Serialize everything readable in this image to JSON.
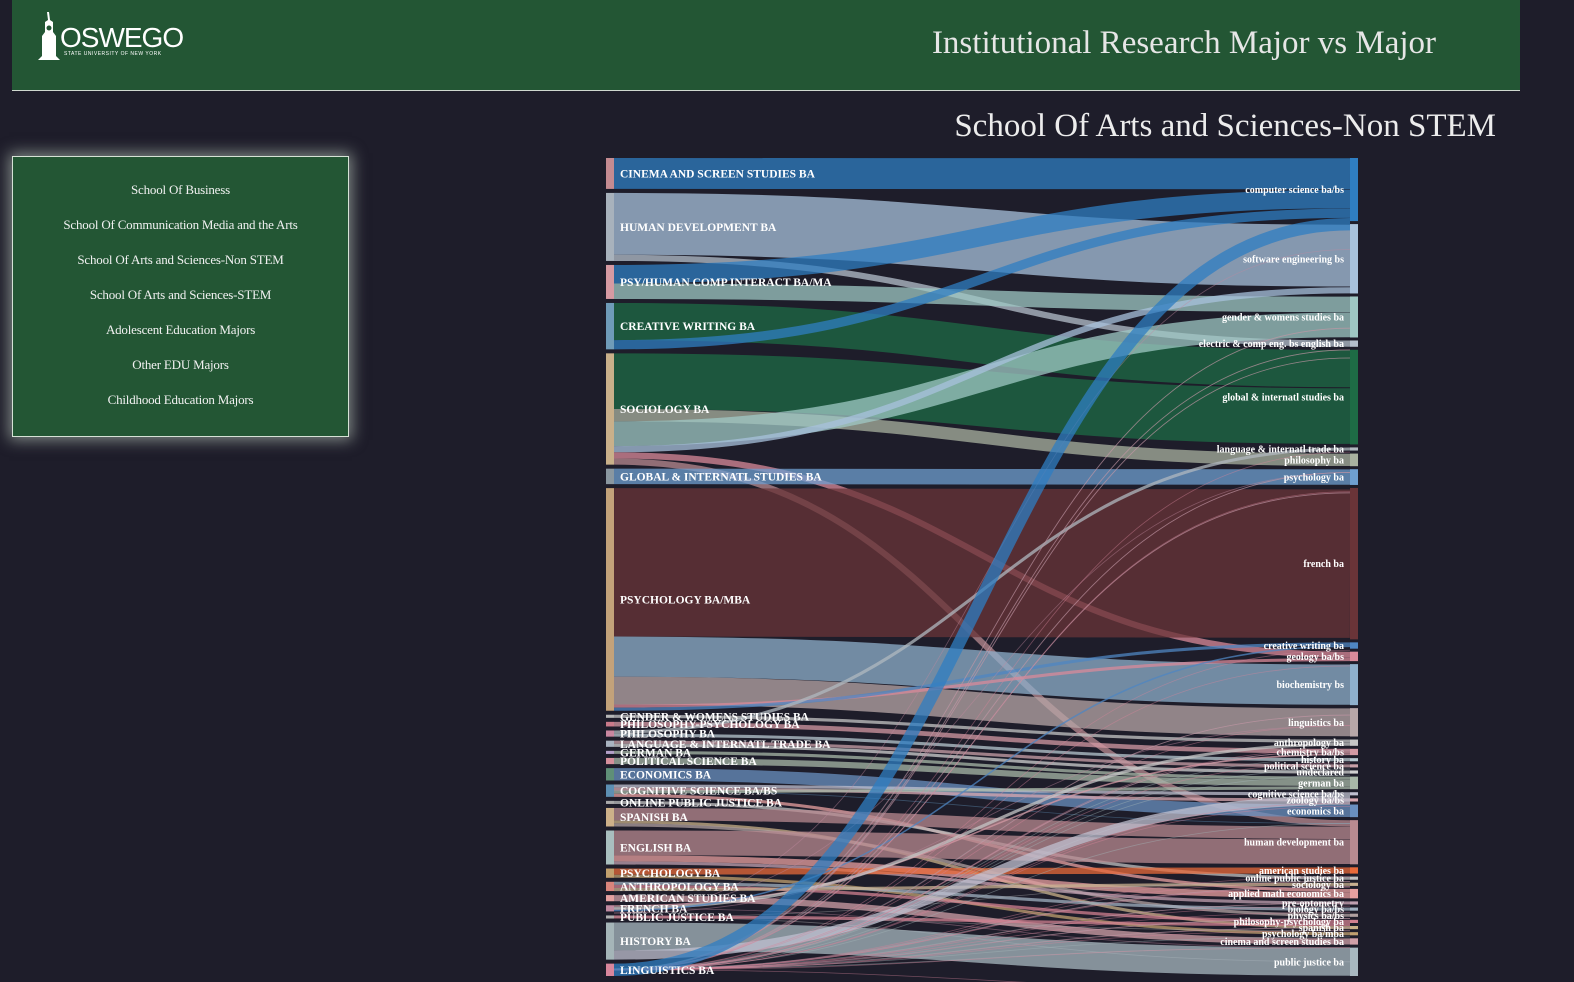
{
  "header": {
    "logo_text": "OSWEGO",
    "logo_subtext": "STATE UNIVERSITY OF NEW YORK",
    "app_title": "Institutional Research Major vs Major"
  },
  "nav": {
    "items": [
      {
        "label": "School Of Business"
      },
      {
        "label": "School Of Communication Media and the Arts"
      },
      {
        "label": "School Of Arts and Sciences-Non STEM"
      },
      {
        "label": "School Of Arts and Sciences-STEM"
      },
      {
        "label": "Adolescent Education Majors"
      },
      {
        "label": "Other EDU Majors"
      },
      {
        "label": "Childhood Education Majors"
      }
    ]
  },
  "chart_data": {
    "type": "sankey",
    "title": "School Of Arts and Sciences-Non STEM",
    "sources": [
      {
        "name": "CINEMA AND SCREEN STUDIES BA",
        "value": 10,
        "color": "#c48b91"
      },
      {
        "name": "HUMAN DEVELOPMENT BA",
        "value": 22,
        "color": "#a8b2bc"
      },
      {
        "name": "PSY/HUMAN COMP INTERACT BA/MA",
        "value": 11,
        "color": "#d69aa2"
      },
      {
        "name": "CREATIVE WRITING BA",
        "value": 15,
        "color": "#6f9bb8"
      },
      {
        "name": "SOCIOLOGY BA",
        "value": 36,
        "color": "#c9b08a"
      },
      {
        "name": "GLOBAL & INTERNATL STUDIES BA",
        "value": 5,
        "color": "#8a97a0"
      },
      {
        "name": "PSYCHOLOGY BA/MBA",
        "value": 72,
        "color": "#c3a27a"
      },
      {
        "name": "GENDER & WOMENS STUDIES BA",
        "value": 1,
        "color": "#b6b6b6"
      },
      {
        "name": "PHILOSOPHY-PSYCHOLOGY BA",
        "value": 1.5,
        "color": "#c97a8a"
      },
      {
        "name": "PHILOSOPHY BA",
        "value": 2,
        "color": "#c987a0"
      },
      {
        "name": "LANGUAGE & INTERNATL TRADE BA",
        "value": 2,
        "color": "#a9b3c0"
      },
      {
        "name": "GERMAN BA",
        "value": 1,
        "color": "#b4a0c8"
      },
      {
        "name": "POLITICAL SCIENCE BA",
        "value": 2,
        "color": "#d6909c"
      },
      {
        "name": "ECONOMICS BA",
        "value": 4,
        "color": "#5f8f77"
      },
      {
        "name": "COGNITIVE SCIENCE BA/BS",
        "value": 4,
        "color": "#5d8fb3"
      },
      {
        "name": "ONLINE PUBLIC JUSTICE BA",
        "value": 1,
        "color": "#aaaaaa"
      },
      {
        "name": "SPANISH BA",
        "value": 6,
        "color": "#cdb089"
      },
      {
        "name": "ENGLISH BA",
        "value": 11,
        "color": "#a9bfbf"
      },
      {
        "name": "PSYCHOLOGY BA",
        "value": 3,
        "color": "#c2a06e"
      },
      {
        "name": "ANTHROPOLOGY BA",
        "value": 3,
        "color": "#d9847c"
      },
      {
        "name": "AMERICAN STUDIES BA",
        "value": 2,
        "color": "#e4a0a0"
      },
      {
        "name": "FRENCH BA",
        "value": 2,
        "color": "#c08aa0"
      },
      {
        "name": "PUBLIC JUSTICE BA",
        "value": 1,
        "color": "#b0b0b0"
      },
      {
        "name": "HISTORY BA",
        "value": 12,
        "color": "#a5b5b8"
      },
      {
        "name": "LINGUISTICS BA",
        "value": 4,
        "color": "#d8869c"
      }
    ],
    "targets": [
      {
        "name": "computer science ba/bs",
        "value": 20,
        "color": "#2f7ec2"
      },
      {
        "name": "software engineering bs",
        "value": 22,
        "color": "#a8c2dc"
      },
      {
        "name": "gender & womens studies ba",
        "value": 13,
        "color": "#9fc8c4"
      },
      {
        "name": "electric & comp eng. bs english ba",
        "value": 2,
        "color": "#b5c0cc"
      },
      {
        "name": "global & internatl studies ba",
        "value": 30,
        "color": "#1e6b45"
      },
      {
        "name": "language & internatl trade ba",
        "value": 1,
        "color": "#b0b8bf"
      },
      {
        "name": "philosophy ba",
        "value": 4,
        "color": "#a9b2a0"
      },
      {
        "name": "psychology ba",
        "value": 5,
        "color": "#6f9fd0"
      },
      {
        "name": "french ba",
        "value": 48,
        "color": "#6a3438"
      },
      {
        "name": "creative writing ba",
        "value": 2,
        "color": "#4f86c2"
      },
      {
        "name": "geology ba/bs",
        "value": 3,
        "color": "#d98a9a"
      },
      {
        "name": "biochemistry bs",
        "value": 13,
        "color": "#8fb0cc"
      },
      {
        "name": "linguistics ba",
        "value": 9,
        "color": "#b8a7a8"
      },
      {
        "name": "anthropology ba",
        "value": 2,
        "color": "#c6c6c6"
      },
      {
        "name": "chemistry ba/bs",
        "value": 2,
        "color": "#d49aa4"
      },
      {
        "name": "history ba",
        "value": 1,
        "color": "#b8c8d0"
      },
      {
        "name": "political science ba",
        "value": 1,
        "color": "#c9a0a8"
      },
      {
        "name": "undeclared",
        "value": 1,
        "color": "#d0d0d0"
      },
      {
        "name": "german ba",
        "value": 4,
        "color": "#a8b8a8"
      },
      {
        "name": "cognitive science ba/bs",
        "value": 1,
        "color": "#c0c0d0"
      },
      {
        "name": "zoology ba/bs",
        "value": 1,
        "color": "#d8a8b0"
      },
      {
        "name": "economics ba",
        "value": 4,
        "color": "#6a90c0"
      },
      {
        "name": "human development ba",
        "value": 14,
        "color": "#b88a90"
      },
      {
        "name": "american studies ba",
        "value": 2,
        "color": "#e86a3a"
      },
      {
        "name": "online public justice ba",
        "value": 1,
        "color": "#c0c0c0"
      },
      {
        "name": "sociology ba",
        "value": 1,
        "color": "#c8b090"
      },
      {
        "name": "applied math economics ba",
        "value": 3,
        "color": "#e8a0a0"
      },
      {
        "name": "pre-optometry",
        "value": 1,
        "color": "#c0a0b0"
      },
      {
        "name": "biology ba/bs",
        "value": 1,
        "color": "#a0b0c0"
      },
      {
        "name": "physics ba/bs",
        "value": 1,
        "color": "#b0a0a0"
      },
      {
        "name": "philosophy-psychology ba",
        "value": 1,
        "color": "#d08090"
      },
      {
        "name": "spanish ba",
        "value": 1,
        "color": "#c8b088"
      },
      {
        "name": "psychology ba/mba",
        "value": 1,
        "color": "#c0a070"
      },
      {
        "name": "cinema and screen studies ba",
        "value": 2,
        "color": "#d0a0a8"
      },
      {
        "name": "public justice ba",
        "value": 9,
        "color": "#a8b8c0"
      }
    ],
    "links": [
      {
        "source": 0,
        "target": 0,
        "value": 10
      },
      {
        "source": 1,
        "target": 1,
        "value": 20
      },
      {
        "source": 1,
        "target": 3,
        "value": 2
      },
      {
        "source": 2,
        "target": 0,
        "value": 6
      },
      {
        "source": 2,
        "target": 2,
        "value": 5
      },
      {
        "source": 3,
        "target": 4,
        "value": 12
      },
      {
        "source": 3,
        "target": 0,
        "value": 3
      },
      {
        "source": 4,
        "target": 4,
        "value": 18
      },
      {
        "source": 4,
        "target": 6,
        "value": 4
      },
      {
        "source": 4,
        "target": 2,
        "value": 8
      },
      {
        "source": 4,
        "target": 1,
        "value": 2
      },
      {
        "source": 4,
        "target": 10,
        "value": 2
      },
      {
        "source": 4,
        "target": 22,
        "value": 2
      },
      {
        "source": 5,
        "target": 7,
        "value": 5
      },
      {
        "source": 6,
        "target": 8,
        "value": 48
      },
      {
        "source": 6,
        "target": 11,
        "value": 13
      },
      {
        "source": 6,
        "target": 12,
        "value": 9
      },
      {
        "source": 6,
        "target": 10,
        "value": 1
      },
      {
        "source": 6,
        "target": 9,
        "value": 1
      },
      {
        "source": 7,
        "target": 13,
        "value": 1
      },
      {
        "source": 8,
        "target": 14,
        "value": 1.5
      },
      {
        "source": 9,
        "target": 5,
        "value": 1
      },
      {
        "source": 9,
        "target": 15,
        "value": 1
      },
      {
        "source": 10,
        "target": 16,
        "value": 1
      },
      {
        "source": 10,
        "target": 17,
        "value": 1
      },
      {
        "source": 11,
        "target": 18,
        "value": 1
      },
      {
        "source": 12,
        "target": 18,
        "value": 2
      },
      {
        "source": 13,
        "target": 21,
        "value": 4
      },
      {
        "source": 14,
        "target": 21,
        "value": 0
      },
      {
        "source": 14,
        "target": 19,
        "value": 1
      },
      {
        "source": 14,
        "target": 20,
        "value": 1
      },
      {
        "source": 14,
        "target": 18,
        "value": 1
      },
      {
        "source": 14,
        "target": 26,
        "value": 1
      },
      {
        "source": 15,
        "target": 24,
        "value": 1
      },
      {
        "source": 16,
        "target": 22,
        "value": 4
      },
      {
        "source": 16,
        "target": 31,
        "value": 1
      },
      {
        "source": 16,
        "target": 29,
        "value": 1
      },
      {
        "source": 17,
        "target": 22,
        "value": 8
      },
      {
        "source": 17,
        "target": 26,
        "value": 2
      },
      {
        "source": 17,
        "target": 27,
        "value": 1
      },
      {
        "source": 18,
        "target": 23,
        "value": 2
      },
      {
        "source": 18,
        "target": 32,
        "value": 1
      },
      {
        "source": 19,
        "target": 28,
        "value": 1
      },
      {
        "source": 19,
        "target": 30,
        "value": 1
      },
      {
        "source": 19,
        "target": 25,
        "value": 1
      },
      {
        "source": 20,
        "target": 33,
        "value": 2
      },
      {
        "source": 21,
        "target": 33,
        "value": 0
      },
      {
        "source": 21,
        "target": 14,
        "value": 0.5
      },
      {
        "source": 21,
        "target": 6,
        "value": 0
      },
      {
        "source": 21,
        "target": 13,
        "value": 1
      },
      {
        "source": 21,
        "target": 0,
        "value": 0
      },
      {
        "source": 21,
        "target": 11,
        "value": 0
      },
      {
        "source": 21,
        "target": 9,
        "value": 0.5
      },
      {
        "source": 22,
        "target": 34,
        "value": 0
      },
      {
        "source": 22,
        "target": 24,
        "value": 0
      },
      {
        "source": 22,
        "target": 31,
        "value": 0
      },
      {
        "source": 22,
        "target": 30,
        "value": 1
      },
      {
        "source": 23,
        "target": 34,
        "value": 9
      },
      {
        "source": 23,
        "target": 29,
        "value": 0
      },
      {
        "source": 23,
        "target": 30,
        "value": 0
      },
      {
        "source": 23,
        "target": 14,
        "value": 0
      },
      {
        "source": 23,
        "target": 17,
        "value": 0
      },
      {
        "source": 23,
        "target": 1,
        "value": 0
      },
      {
        "source": 23,
        "target": 2,
        "value": 0
      },
      {
        "source": 23,
        "target": 6,
        "value": 0
      },
      {
        "source": 23,
        "target": 12,
        "value": 0
      },
      {
        "source": 23,
        "target": 22,
        "value": 0
      },
      {
        "source": 23,
        "target": 26,
        "value": 0
      },
      {
        "source": 23,
        "target": 33,
        "value": 0
      },
      {
        "source": 23,
        "target": 32,
        "value": 0
      },
      {
        "source": 23,
        "target": 21,
        "value": 0
      },
      {
        "source": 23,
        "target": 18,
        "value": 0
      },
      {
        "source": 23,
        "target": 3,
        "value": 0
      },
      {
        "source": 23,
        "target": 7,
        "value": 0
      },
      {
        "source": 23,
        "target": 8,
        "value": 0
      },
      {
        "source": 23,
        "target": 16,
        "value": 0
      },
      {
        "source": 23,
        "target": 19,
        "value": 3
      },
      {
        "source": 24,
        "target": 22,
        "value": 0
      },
      {
        "source": 24,
        "target": 12,
        "value": 0
      },
      {
        "source": 24,
        "target": 34,
        "value": 0
      },
      {
        "source": 24,
        "target": 26,
        "value": 0
      },
      {
        "source": 24,
        "target": 33,
        "value": 0
      },
      {
        "source": 24,
        "target": 28,
        "value": 0
      },
      {
        "source": 24,
        "target": 23,
        "value": 0
      },
      {
        "source": 24,
        "target": 15,
        "value": 0
      },
      {
        "source": 24,
        "target": 29,
        "value": 0
      },
      {
        "source": 24,
        "target": 31,
        "value": 0
      },
      {
        "source": 24,
        "target": 30,
        "value": 0
      },
      {
        "source": 24,
        "target": 27,
        "value": 0
      },
      {
        "source": 24,
        "target": 25,
        "value": 0
      },
      {
        "source": 24,
        "target": 24,
        "value": 0
      },
      {
        "source": 24,
        "target": 20,
        "value": 0
      },
      {
        "source": 24,
        "target": 19,
        "value": 0
      },
      {
        "source": 24,
        "target": 13,
        "value": 0
      },
      {
        "source": 24,
        "target": 11,
        "value": 0
      },
      {
        "source": 24,
        "target": 10,
        "value": 0
      },
      {
        "source": 24,
        "target": 9,
        "value": 0
      },
      {
        "source": 24,
        "target": 8,
        "value": 0
      },
      {
        "source": 24,
        "target": 7,
        "value": 0
      },
      {
        "source": 24,
        "target": 6,
        "value": 0
      },
      {
        "source": 24,
        "target": 5,
        "value": 0
      },
      {
        "source": 24,
        "target": 4,
        "value": 0
      },
      {
        "source": 24,
        "target": 3,
        "value": 0
      },
      {
        "source": 24,
        "target": 2,
        "value": 0
      },
      {
        "source": 24,
        "target": 1,
        "value": 0
      },
      {
        "source": 24,
        "target": 0,
        "value": 4
      }
    ]
  }
}
